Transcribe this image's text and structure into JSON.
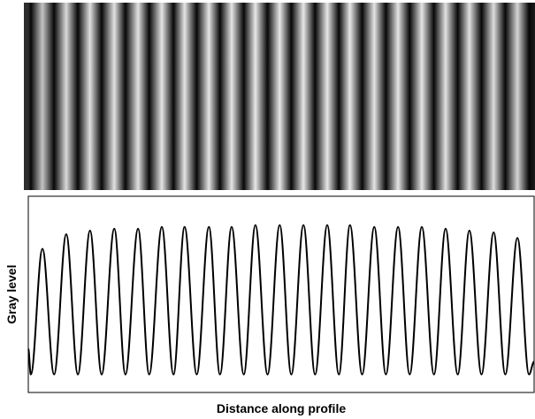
{
  "chart_data": {
    "type": "line",
    "ylabel": "Gray level",
    "xlabel": "Distance along profile",
    "xlim": [
      0,
      100
    ],
    "ylim": [
      0,
      100
    ],
    "x": [
      0,
      0.5,
      2.8,
      5.1,
      7.5,
      9.8,
      12.2,
      14.5,
      17.0,
      19.2,
      21.7,
      23.9,
      26.4,
      28.7,
      30.9,
      33.3,
      35.7,
      37.9,
      40.2,
      42.6,
      44.9,
      47.3,
      49.7,
      52.0,
      54.4,
      56.7,
      59.1,
      61.4,
      63.6,
      66.0,
      68.4,
      70.7,
      73.1,
      75.4,
      77.8,
      80.2,
      82.5,
      84.9,
      87.2,
      89.6,
      92.0,
      94.3,
      96.7,
      99.0,
      100
    ],
    "series": [
      {
        "color": "#000000",
        "values": [
          21,
          7,
          76,
          7,
          84,
          7,
          86,
          7,
          87,
          7,
          87,
          7,
          88,
          7,
          88,
          7,
          88,
          7,
          88,
          7,
          89,
          7,
          89,
          7,
          89,
          7,
          89,
          7,
          89,
          7,
          88,
          7,
          88,
          7,
          88,
          7,
          87,
          7,
          86,
          7,
          85,
          7,
          82,
          7,
          14
        ]
      }
    ]
  }
}
